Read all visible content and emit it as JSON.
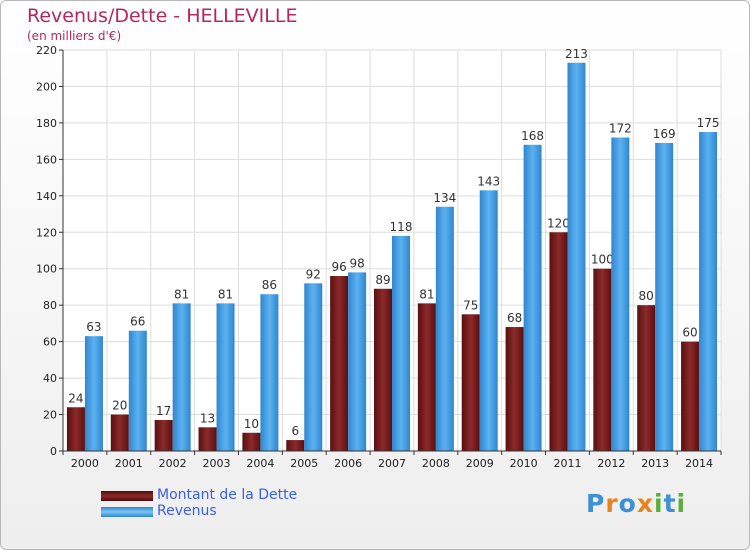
{
  "chart_data": {
    "type": "bar",
    "title": "Revenus/Dette - HELLEVILLE",
    "subtitle": "(en milliers d'€)",
    "categories": [
      "2000",
      "2001",
      "2002",
      "2003",
      "2004",
      "2005",
      "2006",
      "2007",
      "2008",
      "2009",
      "2010",
      "2011",
      "2012",
      "2013",
      "2014"
    ],
    "series": [
      {
        "name": "Montant de la Dette",
        "color": "#7a1f1f",
        "values": [
          24,
          20,
          17,
          13,
          10,
          6,
          96,
          89,
          81,
          75,
          68,
          120,
          100,
          80,
          60
        ]
      },
      {
        "name": "Revenus",
        "color": "#4aa3e8",
        "values": [
          63,
          66,
          81,
          81,
          86,
          92,
          98,
          118,
          134,
          143,
          168,
          213,
          172,
          169,
          175
        ]
      }
    ],
    "ylim": [
      0,
      220
    ],
    "yticks": [
      0,
      20,
      40,
      60,
      80,
      100,
      120,
      140,
      160,
      180,
      200,
      220
    ],
    "grid": true,
    "legend_position": "bottom-left"
  },
  "logo": {
    "letters": [
      "P",
      "r",
      "o",
      "x",
      "i",
      "t",
      "i"
    ],
    "colors": [
      "#3d8fd6",
      "#e8841d",
      "#3d8fd6",
      "#e8841d",
      "#5cae3a",
      "#3d8fd6",
      "#5cae3a"
    ]
  }
}
